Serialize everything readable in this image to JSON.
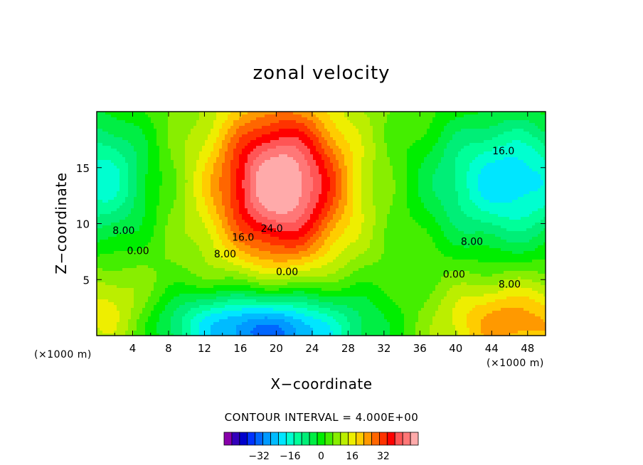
{
  "chart_data": {
    "type": "heatmap",
    "title": "zonal velocity",
    "xlabel": "X−coordinate",
    "ylabel": "Z−coordinate",
    "x_unit": "(×1000 m)",
    "y_unit": "(×1000 m)",
    "xlim": [
      0,
      50
    ],
    "ylim": [
      0,
      20
    ],
    "xticks": [
      4,
      8,
      12,
      16,
      20,
      24,
      28,
      32,
      36,
      40,
      44,
      48
    ],
    "yticks": [
      5,
      10,
      15
    ],
    "contour_interval_text": "CONTOUR INTERVAL = 4.000E+00",
    "contour_interval": 4,
    "contour_labels": [
      {
        "text": "8.00",
        "x": 3,
        "y": 9.4
      },
      {
        "text": "0.00",
        "x": 4.6,
        "y": 7.6
      },
      {
        "text": "8.00",
        "x": 14.3,
        "y": 7.3
      },
      {
        "text": "16.0",
        "x": 16.3,
        "y": 8.8
      },
      {
        "text": "24.0",
        "x": 19.5,
        "y": 9.6
      },
      {
        "text": "0.00",
        "x": 21.2,
        "y": 5.7
      },
      {
        "text": "16.0",
        "x": 45.3,
        "y": 16.5
      },
      {
        "text": "8.00",
        "x": 41.8,
        "y": 8.4
      },
      {
        "text": "0.00",
        "x": 39.8,
        "y": 5.5
      },
      {
        "text": "8.00",
        "x": 46,
        "y": 4.6
      }
    ],
    "features": [
      {
        "name": "positive jet core",
        "x": 20.5,
        "y": 13.2,
        "value": 38
      },
      {
        "name": "lower negative core",
        "x": 19.5,
        "y": 0.5,
        "value": -30
      },
      {
        "name": "upper right negative core",
        "x": 46,
        "y": 13.5,
        "value": -22
      },
      {
        "name": "upper left negative core",
        "x": 0.7,
        "y": 13.5,
        "value": -20
      },
      {
        "name": "lower right positive core",
        "x": 46,
        "y": 1.3,
        "value": 17
      },
      {
        "name": "lower left positive core",
        "x": 1.5,
        "y": 2.3,
        "value": 10
      }
    ],
    "colorbar": {
      "ticks": [
        -32,
        -16,
        0,
        16,
        32
      ],
      "tick_labels": [
        "−32",
        "−16",
        "0",
        "16",
        "32"
      ],
      "colors": [
        "#8800aa",
        "#3300bb",
        "#0000cc",
        "#0033ff",
        "#0066ff",
        "#0099ff",
        "#00bbff",
        "#00e6ff",
        "#00ffd0",
        "#00ff99",
        "#00ee77",
        "#00ee44",
        "#00ee00",
        "#44ee00",
        "#88ee00",
        "#bbee00",
        "#eeee00",
        "#ffcc00",
        "#ff9900",
        "#ff6600",
        "#ff3300",
        "#ff0000",
        "#ff5555",
        "#ff7777",
        "#ffaaaa"
      ]
    }
  }
}
